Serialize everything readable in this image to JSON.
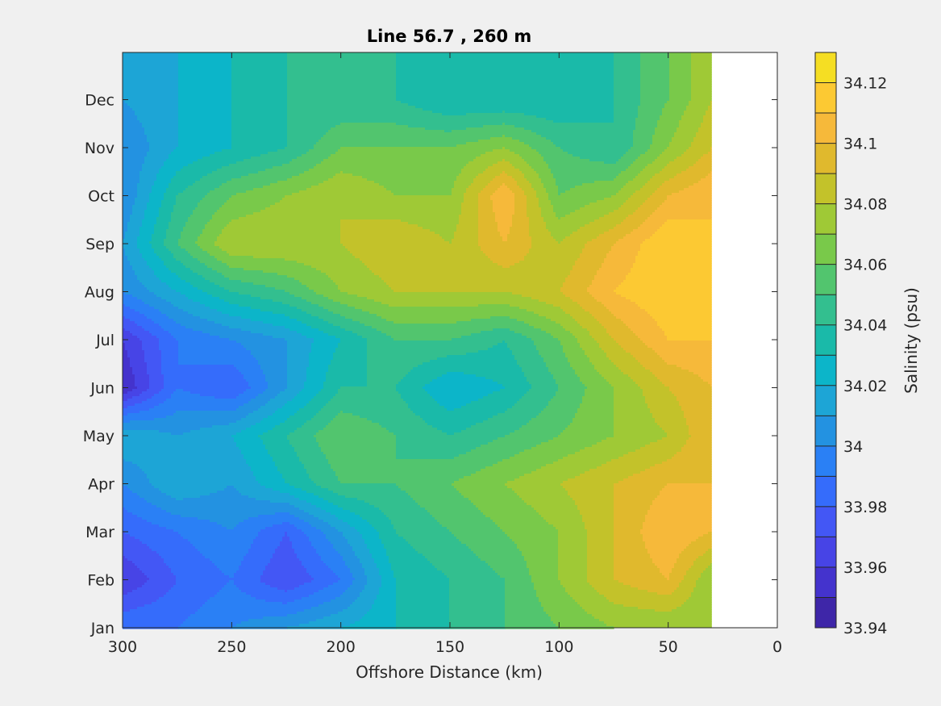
{
  "chart_data": {
    "type": "heatmap",
    "subtype": "filled-contour",
    "title": "Line 56.7 , 260 m",
    "xlabel": "Offshore Distance (km)",
    "xlim": [
      300,
      0
    ],
    "x_ticks": [
      300,
      250,
      200,
      150,
      100,
      50,
      0
    ],
    "x_tick_labels": [
      "300",
      "250",
      "200",
      "150",
      "100",
      "50",
      "0"
    ],
    "y_ticks": [
      "Jan",
      "Feb",
      "Mar",
      "Apr",
      "May",
      "Jun",
      "Jul",
      "Aug",
      "Sep",
      "Oct",
      "Nov",
      "Dec"
    ],
    "y_tick_labels": [
      "Jan",
      "Feb",
      "Mar",
      "Apr",
      "May",
      "Jun",
      "Jul",
      "Aug",
      "Sep",
      "Oct",
      "Nov",
      "Dec"
    ],
    "colorbar": {
      "label": "Salinity (psu)",
      "range": [
        33.94,
        34.13
      ],
      "tick_values": [
        34.12,
        34.1,
        34.08,
        34.06,
        34.04,
        34.02,
        34,
        33.98,
        33.96,
        33.94
      ],
      "tick_labels": [
        "34.12",
        "34.1",
        "34.08",
        "34.06",
        "34.04",
        "34.02",
        "34",
        "33.98",
        "33.96",
        "33.94"
      ],
      "levels": [
        33.94,
        33.95,
        33.96,
        33.97,
        33.98,
        33.99,
        34.0,
        34.01,
        34.02,
        34.03,
        34.04,
        34.05,
        34.06,
        34.07,
        34.08,
        34.09,
        34.1,
        34.11,
        34.12,
        34.13
      ],
      "colors": [
        "#3e26a8",
        "#4433cd",
        "#4744e6",
        "#4357f5",
        "#356cfb",
        "#2a80f5",
        "#2392e1",
        "#1da5d6",
        "#0cb5c9",
        "#1abaa9",
        "#33bf8f",
        "#52c56e",
        "#79c94a",
        "#9fc936",
        "#c3c22a",
        "#e0b92d",
        "#f6b93a",
        "#fcc933",
        "#f5de23",
        "#f9fb15"
      ]
    },
    "no_data_x_range": [
      30,
      0
    ],
    "x": [
      300,
      275,
      250,
      225,
      200,
      175,
      150,
      125,
      100,
      75,
      50,
      30
    ],
    "y": [
      "Jan",
      "Feb",
      "Mar",
      "Apr",
      "May",
      "Jun",
      "Jul",
      "Aug",
      "Sep",
      "Oct",
      "Nov",
      "Dec"
    ],
    "z": [
      [
        33.99,
        33.99,
        34.0,
        34.01,
        34.02,
        34.03,
        34.04,
        34.05,
        34.06,
        34.07,
        34.07,
        34.07
      ],
      [
        33.96,
        33.98,
        33.99,
        33.97,
        33.99,
        34.03,
        34.04,
        34.05,
        34.07,
        34.09,
        34.1,
        34.07
      ],
      [
        33.98,
        33.99,
        34.0,
        33.98,
        34.01,
        34.04,
        34.05,
        34.06,
        34.07,
        34.09,
        34.11,
        34.1
      ],
      [
        34.0,
        34.02,
        34.01,
        34.03,
        34.05,
        34.05,
        34.06,
        34.07,
        34.08,
        34.09,
        34.1,
        34.1
      ],
      [
        34.02,
        34.01,
        34.02,
        34.04,
        34.06,
        34.05,
        34.04,
        34.05,
        34.06,
        34.07,
        34.08,
        34.1
      ],
      [
        33.95,
        33.99,
        33.98,
        34.01,
        34.04,
        34.04,
        34.02,
        34.03,
        34.05,
        34.07,
        34.09,
        34.1
      ],
      [
        33.96,
        33.99,
        34.0,
        34.01,
        34.03,
        34.05,
        34.05,
        34.04,
        34.06,
        34.09,
        34.11,
        34.11
      ],
      [
        34.0,
        34.02,
        34.04,
        34.05,
        34.07,
        34.08,
        34.08,
        34.08,
        34.09,
        34.11,
        34.12,
        34.12
      ],
      [
        34.01,
        34.05,
        34.08,
        34.08,
        34.08,
        34.09,
        34.08,
        34.1,
        34.08,
        34.1,
        34.12,
        34.11
      ],
      [
        34.0,
        34.04,
        34.06,
        34.07,
        34.08,
        34.07,
        34.07,
        34.11,
        34.06,
        34.07,
        34.1,
        34.11
      ],
      [
        34.0,
        34.02,
        34.03,
        34.04,
        34.06,
        34.06,
        34.06,
        34.07,
        34.05,
        34.04,
        34.07,
        34.09
      ],
      [
        34.01,
        34.02,
        34.03,
        34.04,
        34.04,
        34.04,
        34.03,
        34.03,
        34.03,
        34.04,
        34.06,
        34.08
      ]
    ]
  }
}
